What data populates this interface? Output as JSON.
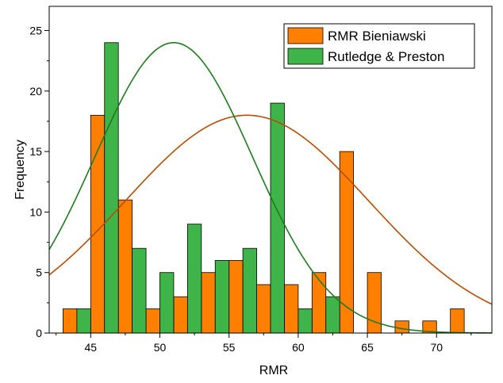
{
  "chart_data": {
    "type": "bar",
    "title": "",
    "xlabel": "RMR",
    "ylabel": "Frequency",
    "xlim": [
      42,
      74
    ],
    "ylim": [
      0,
      27
    ],
    "x_ticks": [
      45,
      50,
      55,
      60,
      65,
      70
    ],
    "y_ticks": [
      0,
      5,
      10,
      15,
      20,
      25
    ],
    "grid": false,
    "legend_position": "top-right",
    "bin_width": 2,
    "series": [
      {
        "name": "RMR Bieniawski",
        "color": "#ff8000",
        "x": [
          44,
          46,
          48,
          50,
          52,
          54,
          56,
          58,
          60,
          62,
          64,
          66,
          68,
          70,
          72
        ],
        "values": [
          2,
          18,
          11,
          2,
          3,
          5,
          6,
          4,
          4,
          5,
          15,
          5,
          1,
          1,
          2
        ],
        "fit": {
          "type": "normal",
          "mean": 56.3,
          "peak": 18,
          "sd": 8.8,
          "color": "#b84c00"
        }
      },
      {
        "name": "Rutledge & Preston",
        "color": "#3fb449",
        "x": [
          44,
          46,
          48,
          50,
          52,
          54,
          56,
          58,
          60,
          62
        ],
        "values": [
          2,
          24,
          7,
          5,
          9,
          6,
          7,
          19,
          2,
          3
        ],
        "fit": {
          "type": "normal",
          "mean": 51,
          "peak": 24,
          "sd": 5.7,
          "color": "#1f7a1f"
        }
      }
    ]
  }
}
